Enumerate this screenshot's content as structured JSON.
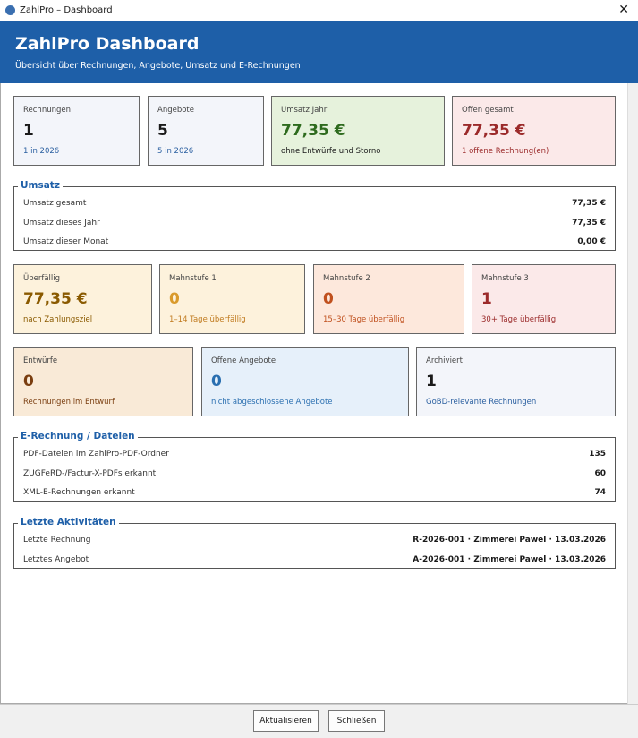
{
  "window": {
    "title": "ZahlPro – Dashboard"
  },
  "header": {
    "title": "ZahlPro Dashboard",
    "subtitle": "Übersicht über Rechnungen, Angebote, Umsatz und E-Rechnungen"
  },
  "cards_top": [
    {
      "label": "Rechnungen",
      "value": "1",
      "note": "1 in 2026"
    },
    {
      "label": "Angebote",
      "value": "5",
      "note": "5 in 2026"
    },
    {
      "label": "Umsatz Jahr",
      "value": "77,35 €",
      "note": "ohne Entwürfe und Storno"
    },
    {
      "label": "Offen gesamt",
      "value": "77,35 €",
      "note": "1 offene Rechnung(en)"
    }
  ],
  "umsatz": {
    "title": "Umsatz",
    "rows": [
      [
        "Umsatz gesamt",
        "77,35 €"
      ],
      [
        "Umsatz dieses Jahr",
        "77,35 €"
      ],
      [
        "Umsatz dieser Monat",
        "0,00 €"
      ]
    ]
  },
  "cards_dunning": [
    {
      "label": "Überfällig",
      "value": "77,35 €",
      "note": "nach Zahlungsziel"
    },
    {
      "label": "Mahnstufe 1",
      "value": "0",
      "note": "1–14 Tage überfällig"
    },
    {
      "label": "Mahnstufe 2",
      "value": "0",
      "note": "15–30 Tage überfällig"
    },
    {
      "label": "Mahnstufe 3",
      "value": "1",
      "note": "30+ Tage überfällig"
    }
  ],
  "cards_status": [
    {
      "label": "Entwürfe",
      "value": "0",
      "note": "Rechnungen im Entwurf"
    },
    {
      "label": "Offene Angebote",
      "value": "0",
      "note": "nicht abgeschlossene Angebote"
    },
    {
      "label": "Archiviert",
      "value": "1",
      "note": "GoBD-relevante Rechnungen"
    }
  ],
  "erechnung": {
    "title": "E-Rechnung / Dateien",
    "rows": [
      [
        "PDF-Dateien im ZahlPro-PDF-Ordner",
        "135"
      ],
      [
        "ZUGFeRD-/Factur-X-PDFs erkannt",
        "60"
      ],
      [
        "XML-E-Rechnungen erkannt",
        "74"
      ]
    ]
  },
  "aktivitaeten": {
    "title": "Letzte Aktivitäten",
    "rows": [
      [
        "Letzte Rechnung",
        "R-2026-001 · Zimmerei Pawel · 13.03.2026"
      ],
      [
        "Letztes Angebot",
        "A-2026-001 · Zimmerei Pawel · 13.03.2026"
      ]
    ]
  },
  "buttons": [
    "Aktualisieren",
    "Schließen"
  ]
}
